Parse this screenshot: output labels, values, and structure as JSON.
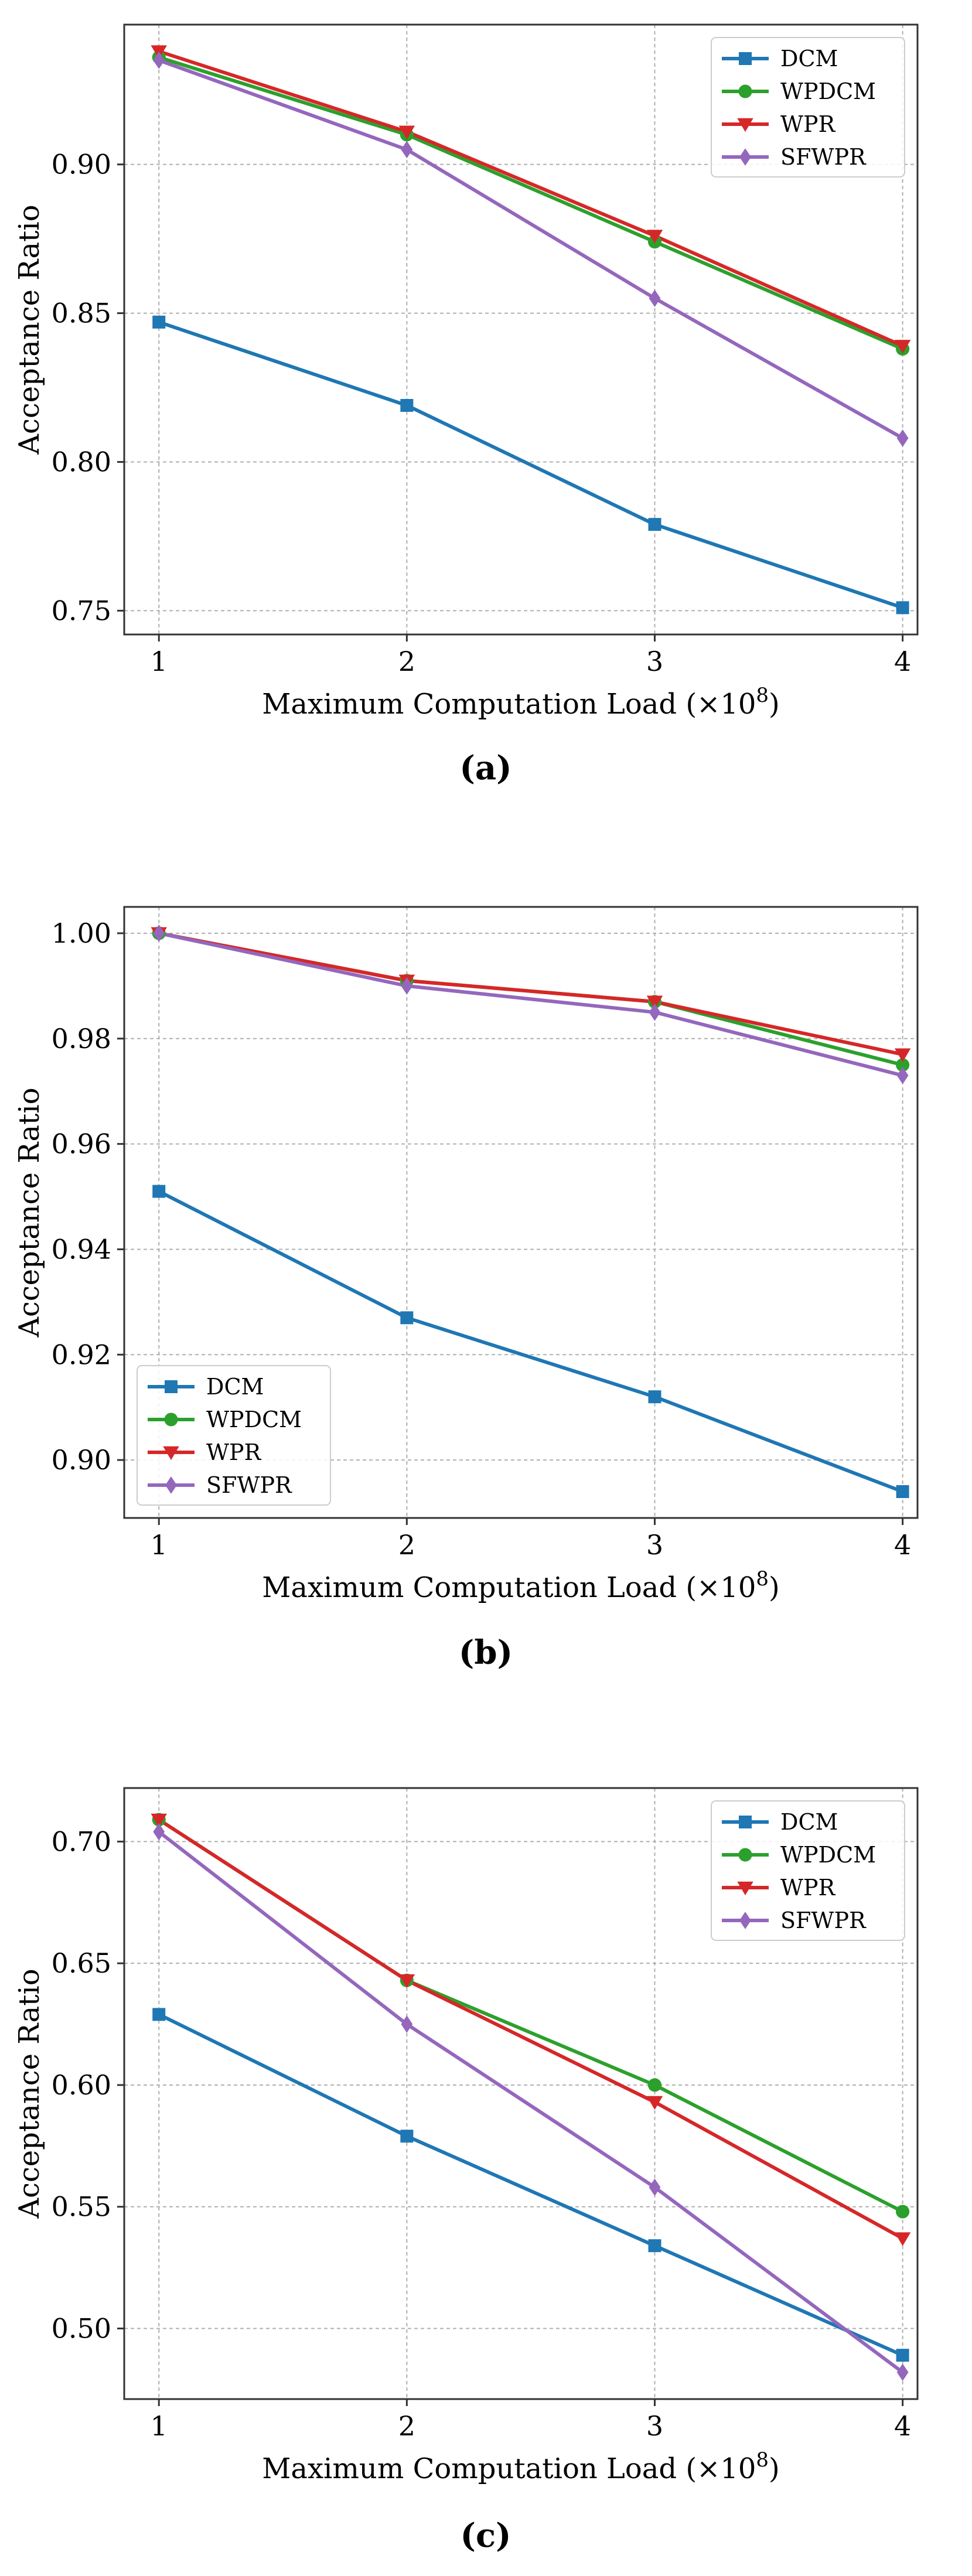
{
  "figure": {
    "colors": {
      "DCM": "#1f77b4",
      "WPDCM": "#2ca02c",
      "WPR": "#d62728",
      "SFWPR": "#9467bd"
    }
  },
  "chart_data": [
    {
      "id": "a",
      "type": "line",
      "panel_label": "(a)",
      "xlabel_main": "Maximum Computation Load (×10",
      "xlabel_exp": "8",
      "xlabel_close": ")",
      "ylabel": "Acceptance Ratio",
      "x": [
        1,
        2,
        3,
        4
      ],
      "x_ticks": [
        "1",
        "2",
        "3",
        "4"
      ],
      "xlim": [
        0.86,
        4.06
      ],
      "ylim": [
        0.742,
        0.947
      ],
      "y_ticks": [
        "0.75",
        "0.80",
        "0.85",
        "0.90"
      ],
      "y_tick_values": [
        0.75,
        0.8,
        0.85,
        0.9
      ],
      "grid": true,
      "legend_position": "top-right",
      "series": [
        {
          "name": "DCM",
          "marker": "square",
          "values": [
            0.847,
            0.819,
            0.779,
            0.751
          ]
        },
        {
          "name": "WPDCM",
          "marker": "circle",
          "values": [
            0.936,
            0.91,
            0.874,
            0.838
          ]
        },
        {
          "name": "WPR",
          "marker": "triangle-down",
          "values": [
            0.938,
            0.911,
            0.876,
            0.839
          ]
        },
        {
          "name": "SFWPR",
          "marker": "diamond",
          "values": [
            0.935,
            0.905,
            0.855,
            0.808
          ]
        }
      ]
    },
    {
      "id": "b",
      "type": "line",
      "panel_label": "(b)",
      "xlabel_main": "Maximum Computation Load (×10",
      "xlabel_exp": "8",
      "xlabel_close": ")",
      "ylabel": "Acceptance Ratio",
      "x": [
        1,
        2,
        3,
        4
      ],
      "x_ticks": [
        "1",
        "2",
        "3",
        "4"
      ],
      "xlim": [
        0.86,
        4.06
      ],
      "ylim": [
        0.889,
        1.005
      ],
      "y_ticks": [
        "0.90",
        "0.92",
        "0.94",
        "0.96",
        "0.98",
        "1.00"
      ],
      "y_tick_values": [
        0.9,
        0.92,
        0.94,
        0.96,
        0.98,
        1.0
      ],
      "grid": true,
      "legend_position": "bottom-left",
      "series": [
        {
          "name": "DCM",
          "marker": "square",
          "values": [
            0.951,
            0.927,
            0.912,
            0.894
          ]
        },
        {
          "name": "WPDCM",
          "marker": "circle",
          "values": [
            1.0,
            0.991,
            0.987,
            0.975
          ]
        },
        {
          "name": "WPR",
          "marker": "triangle-down",
          "values": [
            1.0,
            0.991,
            0.987,
            0.977
          ]
        },
        {
          "name": "SFWPR",
          "marker": "diamond",
          "values": [
            1.0,
            0.99,
            0.985,
            0.973
          ]
        }
      ]
    },
    {
      "id": "c",
      "type": "line",
      "panel_label": "(c)",
      "xlabel_main": "Maximum Computation Load (×10",
      "xlabel_exp": "8",
      "xlabel_close": ")",
      "ylabel": "Acceptance Ratio",
      "x": [
        1,
        2,
        3,
        4
      ],
      "x_ticks": [
        "1",
        "2",
        "3",
        "4"
      ],
      "xlim": [
        0.86,
        4.06
      ],
      "ylim": [
        0.471,
        0.722
      ],
      "y_ticks": [
        "0.50",
        "0.55",
        "0.60",
        "0.65",
        "0.70"
      ],
      "y_tick_values": [
        0.5,
        0.55,
        0.6,
        0.65,
        0.7
      ],
      "grid": true,
      "legend_position": "top-right",
      "series": [
        {
          "name": "DCM",
          "marker": "square",
          "values": [
            0.629,
            0.579,
            0.534,
            0.489
          ]
        },
        {
          "name": "WPDCM",
          "marker": "circle",
          "values": [
            0.709,
            0.643,
            0.6,
            0.548
          ]
        },
        {
          "name": "WPR",
          "marker": "triangle-down",
          "values": [
            0.709,
            0.643,
            0.593,
            0.537
          ]
        },
        {
          "name": "SFWPR",
          "marker": "diamond",
          "values": [
            0.704,
            0.625,
            0.558,
            0.482
          ]
        }
      ]
    }
  ]
}
